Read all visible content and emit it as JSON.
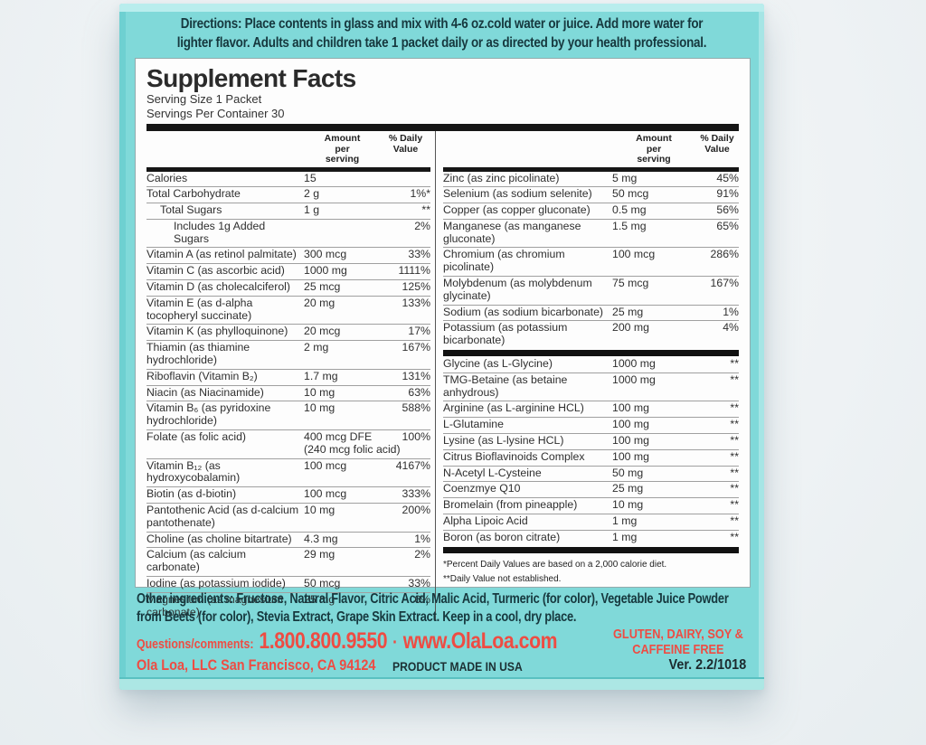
{
  "colors": {
    "teal_face": "#80d9d9",
    "teal_edge_light": "#b9eded",
    "red_accent": "#ee4c43",
    "dark_teal_text": "#16383e",
    "panel_bg": "#fdfdfd"
  },
  "directions": {
    "text": "Directions: Place contents in glass and mix with 4-6 oz.cold water or juice. Add more water for lighter flavor. Adults and children take 1 packet daily or as directed by your health professional."
  },
  "panel": {
    "title": "Supplement Facts",
    "serving_size": "Serving Size 1 Packet",
    "servings_per_container": "Servings Per Container 30",
    "header_amount": "Amount per serving",
    "header_dv": "% Daily Value",
    "left_rows": [
      {
        "name": "Calories",
        "amount": "15",
        "dv": ""
      },
      {
        "name": "Total Carbohydrate",
        "amount": "2 g",
        "dv": "1%*"
      },
      {
        "name": "Total Sugars",
        "amount": "1 g",
        "dv": "**",
        "indent": 1
      },
      {
        "name": "Includes 1g Added Sugars",
        "amount": "",
        "dv": "2%",
        "indent": 2
      },
      {
        "name": "Vitamin A (as retinol palmitate)",
        "amount": "300 mcg",
        "dv": "33%"
      },
      {
        "name": "Vitamin C (as ascorbic acid)",
        "amount": "1000 mg",
        "dv": "1111%"
      },
      {
        "name": "Vitamin D (as cholecalciferol)",
        "amount": "25 mcg",
        "dv": "125%"
      },
      {
        "name": "Vitamin E (as d-alpha tocopheryl succinate)",
        "amount": "20 mg",
        "dv": "133%"
      },
      {
        "name": "Vitamin K (as phylloquinone)",
        "amount": "20 mcg",
        "dv": "17%"
      },
      {
        "name": "Thiamin (as thiamine hydrochloride)",
        "amount": "2 mg",
        "dv": "167%"
      },
      {
        "name": "Riboflavin (Vitamin B₂)",
        "amount": "1.7 mg",
        "dv": "131%"
      },
      {
        "name": "Niacin (as Niacinamide)",
        "amount": "10 mg",
        "dv": "63%"
      },
      {
        "name": "Vitamin B₆ (as pyridoxine hydrochloride)",
        "amount": "10 mg",
        "dv": "588%"
      },
      {
        "name": "Folate (as folic acid)",
        "amount": "400 mcg DFE",
        "amount_sub": "(240 mcg folic acid)",
        "dv": "100%"
      },
      {
        "name": "Vitamin B₁₂ (as hydroxycobalamin)",
        "amount": "100 mcg",
        "dv": "4167%"
      },
      {
        "name": "Biotin (as d-biotin)",
        "amount": "100 mcg",
        "dv": "333%"
      },
      {
        "name": "Pantothenic Acid (as d-calcium pantothenate)",
        "amount": "10 mg",
        "dv": "200%"
      },
      {
        "name": "Choline (as choline bitartrate)",
        "amount": "4.3 mg",
        "dv": "1%"
      },
      {
        "name": "Calcium (as calcium carbonate)",
        "amount": "29 mg",
        "dv": "2%"
      },
      {
        "name": "Iodine (as potassium iodide)",
        "amount": "50 mcg",
        "dv": "33%"
      },
      {
        "name": "Magnesium (as magnesium carbonate)",
        "amount": "25 mg",
        "dv": "6%"
      }
    ],
    "right_rows": [
      {
        "name": "Zinc (as zinc picolinate)",
        "amount": "5 mg",
        "dv": "45%"
      },
      {
        "name": "Selenium (as sodium selenite)",
        "amount": "50 mcg",
        "dv": "91%"
      },
      {
        "name": "Copper (as copper gluconate)",
        "amount": "0.5 mg",
        "dv": "56%"
      },
      {
        "name": "Manganese (as manganese gluconate)",
        "amount": "1.5 mg",
        "dv": "65%"
      },
      {
        "name": "Chromium (as chromium picolinate)",
        "amount": "100 mcg",
        "dv": "286%"
      },
      {
        "name": "Molybdenum (as molybdenum glycinate)",
        "amount": "75 mcg",
        "dv": "167%"
      },
      {
        "name": "Sodium (as sodium bicarbonate)",
        "amount": "25 mg",
        "dv": "1%"
      },
      {
        "name": "Potassium (as potassium bicarbonate)",
        "amount": "200 mg",
        "dv": "4%",
        "bar_after": true
      },
      {
        "name": "Glycine (as L-Glycine)",
        "amount": "1000 mg",
        "dv": "**"
      },
      {
        "name": "TMG-Betaine (as betaine anhydrous)",
        "amount": "1000 mg",
        "dv": "**"
      },
      {
        "name": "Arginine (as L-arginine HCL)",
        "amount": "100 mg",
        "dv": "**"
      },
      {
        "name": "L-Glutamine",
        "amount": "100 mg",
        "dv": "**"
      },
      {
        "name": "Lysine (as L-lysine HCL)",
        "amount": "100 mg",
        "dv": "**"
      },
      {
        "name": "Citrus Bioflavinoids Complex",
        "amount": "100 mg",
        "dv": "**"
      },
      {
        "name": "N-Acetyl L-Cysteine",
        "amount": "50 mg",
        "dv": "**"
      },
      {
        "name": "Coenzmye Q10",
        "amount": "25 mg",
        "dv": "**"
      },
      {
        "name": "Bromelain (from pineapple)",
        "amount": "10 mg",
        "dv": "**"
      },
      {
        "name": "Alpha Lipoic Acid",
        "amount": "1 mg",
        "dv": "**"
      },
      {
        "name": "Boron (as boron citrate)",
        "amount": "1 mg",
        "dv": "**",
        "bar_after": true
      }
    ],
    "footnote1": "*Percent Daily Values are based on a 2,000 calorie diet.",
    "footnote2": "**Daily Value not established."
  },
  "bottom": {
    "other_ingredients": "Other ingredients: Fructose, Natural Flavor, Citric Acid, Malic Acid, Turmeric (for color), Vegetable Juice Powder from Beets (for color), Stevia Extract, Grape Skin Extract.  Keep in a cool, dry place.",
    "questions_label": "Questions/comments:",
    "phone": "1.800.800.9550",
    "separator": "·",
    "website": "www.OlaLoa.com",
    "company": "Ola Loa, LLC  San Francisco, CA 94124",
    "made_in": "PRODUCT MADE IN USA",
    "free_claims": "GLUTEN, DAIRY, SOY & CAFFEINE FREE",
    "version": "Ver. 2.2/1018"
  }
}
